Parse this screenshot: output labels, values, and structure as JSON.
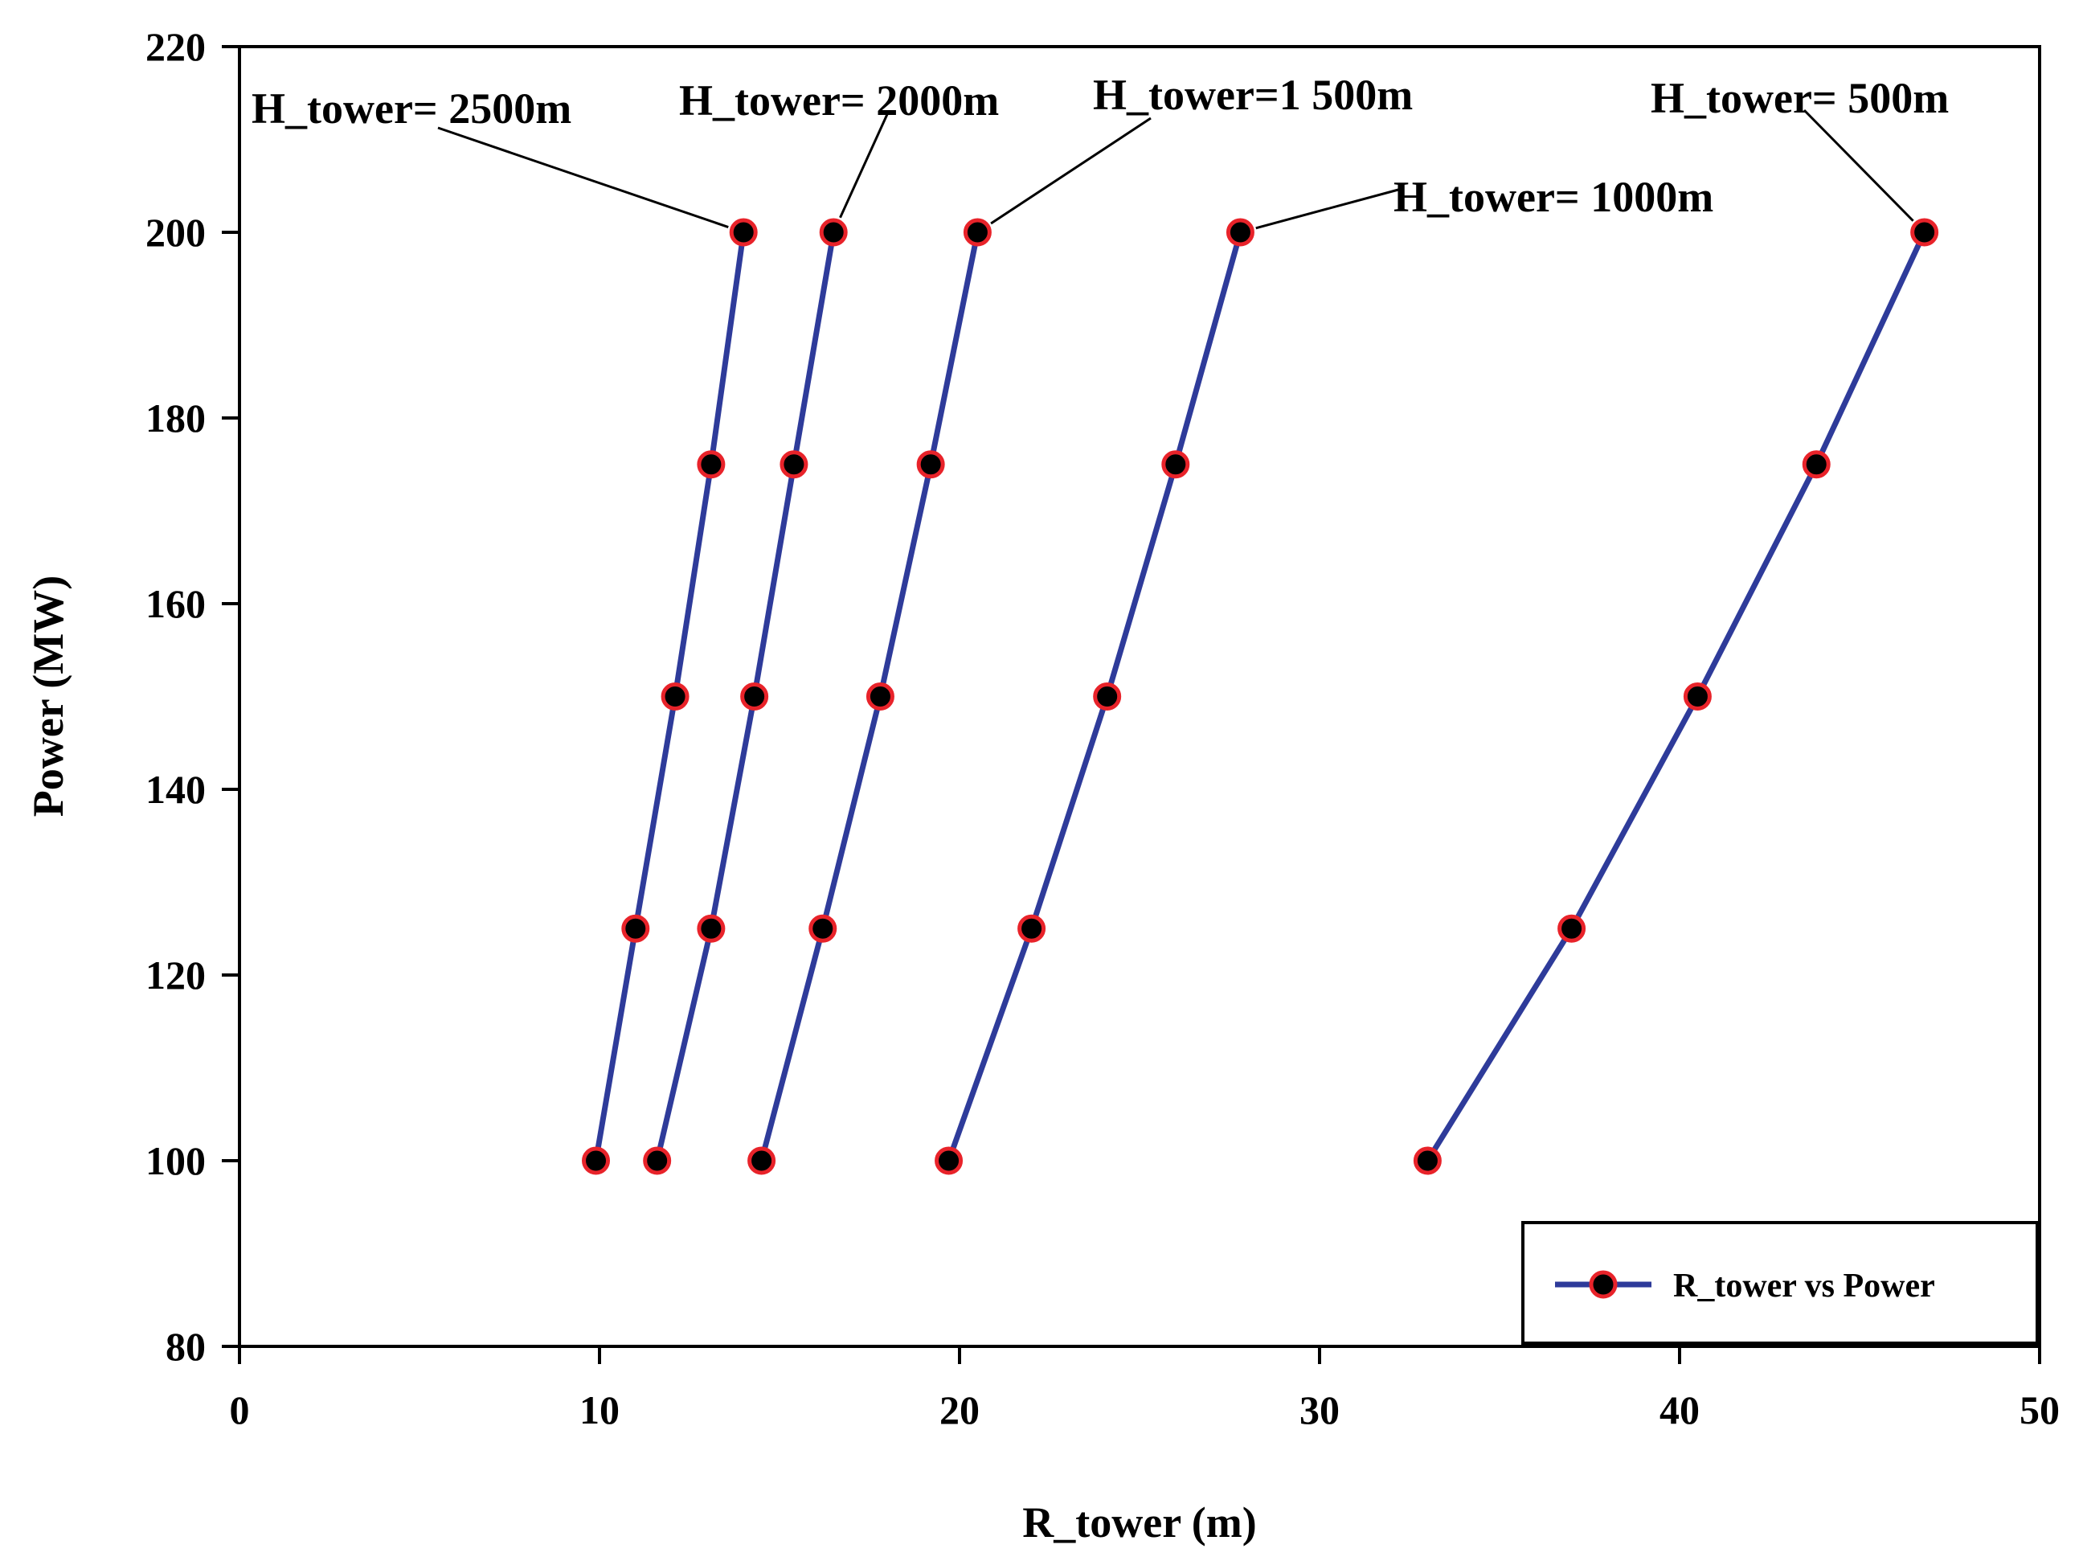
{
  "chart_data": {
    "type": "line",
    "title": "",
    "xlabel": "R_tower (m)",
    "ylabel": "Power (MW)",
    "xlim": [
      0,
      50
    ],
    "ylim": [
      80,
      220
    ],
    "xticks": [
      0,
      10,
      20,
      30,
      40,
      50
    ],
    "yticks": [
      80,
      100,
      120,
      140,
      160,
      180,
      200,
      220
    ],
    "grid": false,
    "legend": {
      "label": "R_tower vs Power",
      "position": "bottom-right"
    },
    "series": [
      {
        "name": "H_tower= 2500m",
        "x": [
          9.9,
          11.0,
          12.1,
          13.1,
          14.0
        ],
        "y": [
          100,
          125,
          150,
          175,
          200
        ]
      },
      {
        "name": "H_tower= 2000m",
        "x": [
          11.6,
          13.1,
          14.3,
          15.4,
          16.5
        ],
        "y": [
          100,
          125,
          150,
          175,
          200
        ]
      },
      {
        "name": "H_tower=1 500m",
        "x": [
          14.5,
          16.2,
          17.8,
          19.2,
          20.5
        ],
        "y": [
          100,
          125,
          150,
          175,
          200
        ]
      },
      {
        "name": "H_tower= 1000m",
        "x": [
          19.7,
          22.0,
          24.1,
          26.0,
          27.8
        ],
        "y": [
          100,
          125,
          150,
          175,
          200
        ]
      },
      {
        "name": "H_tower= 500m",
        "x": [
          33.0,
          37.0,
          40.5,
          43.8,
          46.8
        ],
        "y": [
          100,
          125,
          150,
          175,
          200
        ]
      }
    ],
    "annotations": [
      {
        "text": "H_tower= 2500m",
        "series": 0
      },
      {
        "text": "H_tower= 2000m",
        "series": 1
      },
      {
        "text": "H_tower=1 500m",
        "series": 2
      },
      {
        "text": "H_tower= 1000m",
        "series": 3
      },
      {
        "text": "H_tower= 500m",
        "series": 4
      }
    ],
    "colors": {
      "line": "#2e3b9a",
      "marker_fill": "#000000",
      "marker_edge": "#e8232a",
      "axis": "#000000"
    }
  }
}
